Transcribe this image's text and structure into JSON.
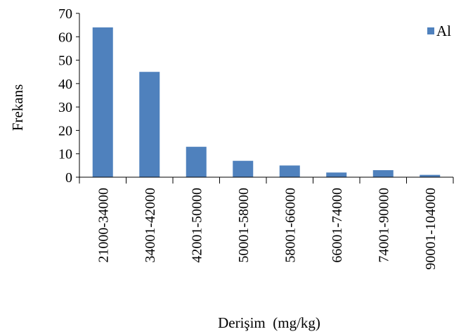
{
  "chart_data": {
    "type": "bar",
    "categories": [
      "21000-34000",
      "34001-42000",
      "42001-50000",
      "50001-58000",
      "58001-66000",
      "66001-74000",
      "74001-90000",
      "90001-104000"
    ],
    "series": [
      {
        "name": "Al",
        "values": [
          64,
          45,
          13,
          7,
          5,
          2,
          3,
          1
        ],
        "color": "#4f81bd"
      }
    ],
    "xlabel": "Derişim  (mg/kg)",
    "ylabel": "Frekans",
    "ylim": [
      0,
      70
    ],
    "yticks": [
      0,
      10,
      20,
      30,
      40,
      50,
      60,
      70
    ],
    "grid": false,
    "legend_position": "top-right"
  }
}
